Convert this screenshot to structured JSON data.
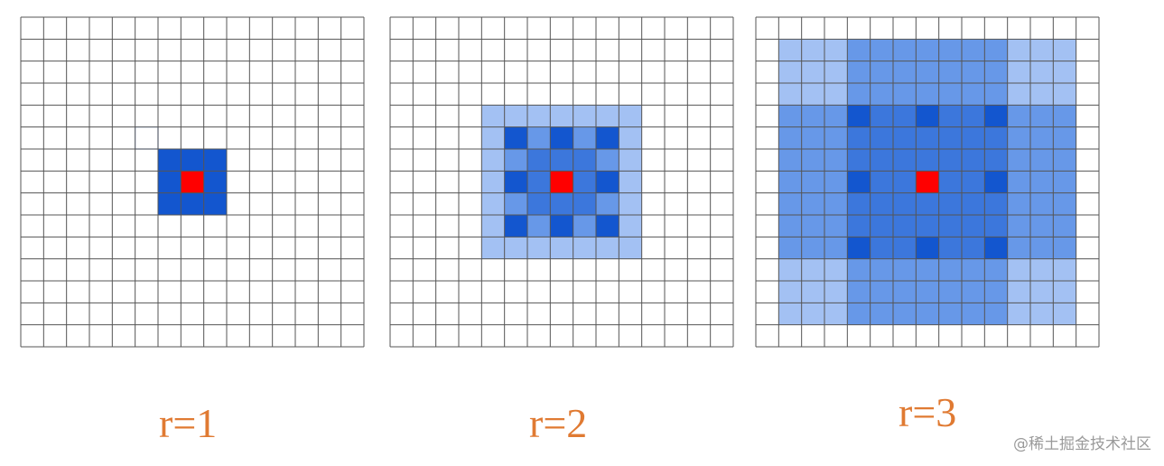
{
  "colors": {
    "grid_line": "#555555",
    "center": "#ff0000",
    "dark": "#1356cf",
    "mid": "#3c77dc",
    "light": "#6798e8",
    "pale": "#a3c1f3",
    "label": "#e07a32"
  },
  "grid": {
    "cells": 15
  },
  "panels": [
    {
      "label": "r=1",
      "center": [
        7,
        7
      ],
      "fills": [
        {
          "r0": 6,
          "r1": 8,
          "c0": 6,
          "c1": 8,
          "color": "dark"
        },
        {
          "r0": 5,
          "r1": 5,
          "c0": 5,
          "c1": 5,
          "color": "outline"
        }
      ]
    },
    {
      "label": "r=2",
      "center": [
        7,
        7
      ],
      "fills": [
        {
          "r0": 4,
          "r1": 10,
          "c0": 4,
          "c1": 10,
          "color": "pale"
        },
        {
          "r0": 5,
          "r1": 9,
          "c0": 5,
          "c1": 9,
          "color": "light"
        },
        {
          "r0": 6,
          "r1": 8,
          "c0": 6,
          "c1": 8,
          "color": "mid"
        },
        {
          "rows": [
            5,
            7,
            9
          ],
          "cols": [
            5,
            7,
            9
          ],
          "color": "dark"
        }
      ]
    },
    {
      "label": "r=3",
      "center": [
        7,
        7
      ],
      "fills": [
        {
          "r0": 1,
          "r1": 13,
          "c0": 1,
          "c1": 13,
          "color": "pale"
        },
        {
          "r0": 1,
          "r1": 13,
          "c0": 4,
          "c1": 10,
          "color": "light"
        },
        {
          "r0": 4,
          "r1": 10,
          "c0": 1,
          "c1": 13,
          "color": "light"
        },
        {
          "r0": 4,
          "r1": 10,
          "c0": 4,
          "c1": 10,
          "color": "mid"
        },
        {
          "rows": [
            4,
            7,
            10
          ],
          "cols": [
            4,
            7,
            10
          ],
          "color": "dark"
        }
      ]
    }
  ],
  "watermark": "@稀土掘金技术社区"
}
